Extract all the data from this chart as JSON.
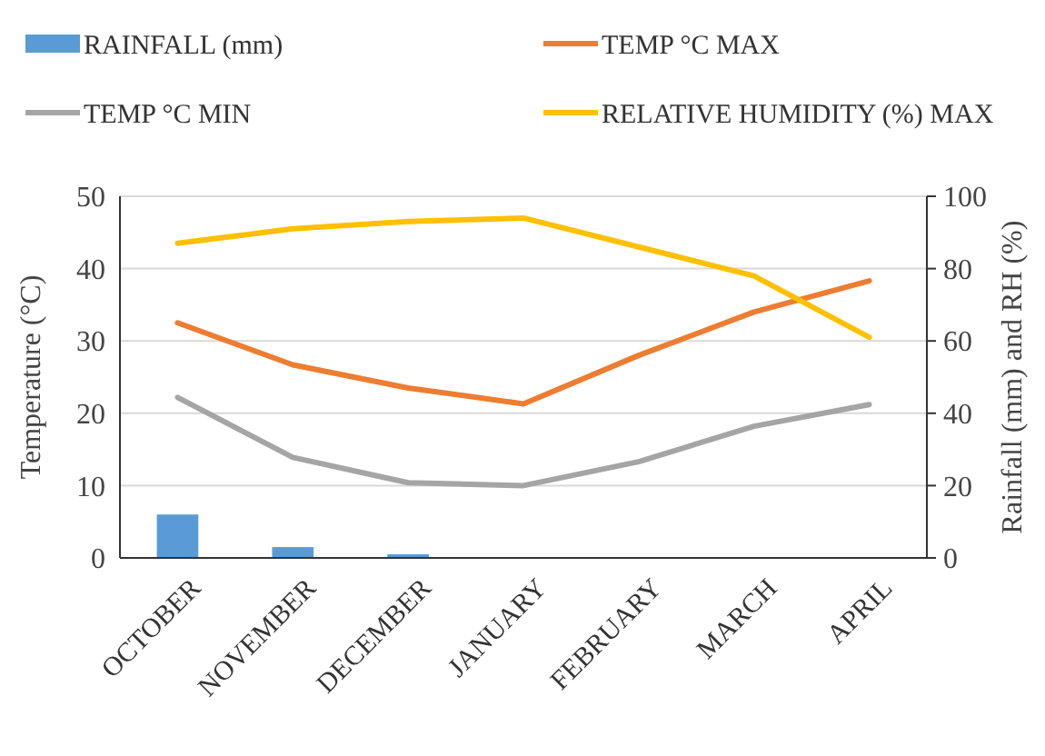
{
  "chart_data": {
    "type": "line",
    "categories": [
      "OCTOBER",
      "NOVEMBER",
      "DECEMBER",
      "JANUARY",
      "FEBRUARY",
      "MARCH",
      "APRIL"
    ],
    "series": [
      {
        "name": "RAINFALL (mm)",
        "type": "bar",
        "axis": "y2",
        "color": "#5b9bd5",
        "values": [
          12,
          3,
          1,
          0,
          0,
          0,
          0
        ]
      },
      {
        "name": "TEMP °C MAX",
        "color": "#ed7d31",
        "values": [
          32.5,
          26.7,
          23.5,
          21.3,
          28,
          34,
          38.3
        ]
      },
      {
        "name": "TEMP °C MIN",
        "color": "#a5a5a5",
        "values": [
          22.2,
          13.9,
          10.4,
          10,
          13.3,
          18.2,
          21.2
        ]
      },
      {
        "name": "RELATIVE HUMIDITY (%) MAX",
        "axis": "y2",
        "color": "#ffc000",
        "values": [
          87,
          91,
          93,
          94,
          86,
          78,
          61
        ]
      }
    ],
    "ylabel": "Temperature (°C)",
    "y2label": "Rainfall  (mm) and RH (%)",
    "ylim": [
      0,
      50
    ],
    "yticks": [
      0,
      10,
      20,
      30,
      40,
      50
    ],
    "y2lim": [
      0,
      100
    ],
    "y2ticks": [
      0,
      20,
      40,
      60,
      80,
      100
    ],
    "grid": "y",
    "legend": "top"
  }
}
